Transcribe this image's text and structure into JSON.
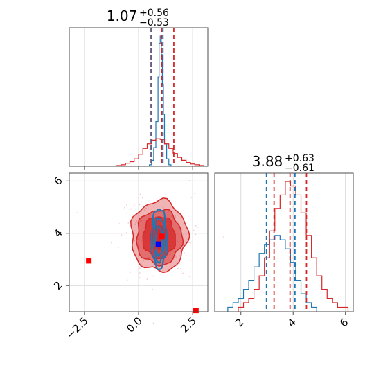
{
  "colors": {
    "red": "#d62728",
    "blue": "#1f77b4",
    "grid": "#d9d9d9",
    "axis": "#4d4d4d"
  },
  "chart_data": [
    {
      "type": "histogram",
      "panel": "param1-marginal",
      "title": "1.07",
      "title_sup": "+0.56",
      "title_sub": "−0.53",
      "xlim": [
        -3.2,
        3.2
      ],
      "quantiles_red": [
        0.54,
        1.07,
        1.63
      ],
      "quantiles_blue": [
        0.6,
        1.13
      ],
      "red_hist": {
        "edges": [
          -1.0,
          -0.8,
          -0.6,
          -0.4,
          -0.2,
          0.0,
          0.2,
          0.4,
          0.6,
          0.8,
          1.0,
          1.2,
          1.4,
          1.6,
          1.8,
          2.0,
          2.2,
          2.4,
          2.6,
          2.8,
          3.0
        ],
        "counts": [
          1,
          2,
          4,
          6,
          10,
          16,
          24,
          30,
          35,
          37,
          36,
          30,
          24,
          17,
          12,
          8,
          5,
          3,
          2,
          1
        ]
      },
      "blue_hist": {
        "edges": [
          0.5,
          0.6,
          0.7,
          0.8,
          0.9,
          0.95,
          1.0,
          1.05,
          1.1,
          1.15,
          1.2,
          1.3,
          1.4,
          1.5
        ],
        "counts": [
          2,
          8,
          25,
          60,
          120,
          165,
          175,
          150,
          110,
          70,
          30,
          10,
          2
        ]
      }
    },
    {
      "type": "histogram",
      "panel": "param2-marginal",
      "title": "3.88",
      "title_sup": "+0.63",
      "title_sub": "−0.61",
      "xlim": [
        1.0,
        6.3
      ],
      "xticks": [
        "2",
        "4",
        "6"
      ],
      "xtick_values": [
        2,
        4,
        6
      ],
      "quantiles_red": [
        3.27,
        3.88,
        4.51
      ],
      "quantiles_blue": [
        2.98,
        4.07
      ],
      "red_hist": {
        "edges": [
          1.9,
          2.1,
          2.3,
          2.5,
          2.7,
          2.9,
          3.1,
          3.3,
          3.5,
          3.7,
          3.9,
          4.1,
          4.3,
          4.5,
          4.7,
          4.9,
          5.1,
          5.3,
          5.5,
          5.7,
          5.9,
          6.1
        ],
        "counts": [
          1,
          2,
          3,
          5,
          8,
          12,
          18,
          23,
          26,
          29,
          28,
          26,
          22,
          17,
          12,
          8,
          5,
          3,
          2,
          1,
          1
        ]
      },
      "blue_hist": {
        "edges": [
          1.5,
          1.7,
          1.9,
          2.1,
          2.3,
          2.5,
          2.7,
          2.9,
          3.1,
          3.3,
          3.5,
          3.7,
          3.9,
          4.1,
          4.3,
          4.5,
          4.7,
          4.9
        ],
        "counts": [
          1,
          2,
          3,
          5,
          7,
          10,
          13,
          15,
          16,
          17,
          16,
          14,
          11,
          7,
          4,
          2,
          1
        ]
      }
    },
    {
      "type": "scatter",
      "panel": "joint-param1-param2",
      "xlim": [
        -3.2,
        3.2
      ],
      "ylim": [
        1.0,
        6.3
      ],
      "xticks": [
        "−2.5",
        "0.0",
        "2.5"
      ],
      "xtick_values": [
        -2.5,
        0.0,
        2.5
      ],
      "yticks": [
        "2",
        "4",
        "6"
      ],
      "ytick_values": [
        2,
        4,
        6
      ],
      "red_contours": [
        {
          "cx": 0.95,
          "cy": 3.9,
          "rx": 1.3,
          "ry": 1.35,
          "alpha": 0.35
        },
        {
          "cx": 0.95,
          "cy": 3.85,
          "rx": 1.05,
          "ry": 1.05,
          "alpha": 0.5
        },
        {
          "cx": 0.95,
          "cy": 3.85,
          "rx": 0.75,
          "ry": 0.8,
          "alpha": 0.75
        },
        {
          "cx": 0.95,
          "cy": 3.85,
          "rx": 0.4,
          "ry": 0.45,
          "alpha": 0.95
        }
      ],
      "blue_contours": [
        {
          "cx": 0.95,
          "cy": 3.8,
          "rx": 0.35,
          "ry": 1.15
        },
        {
          "cx": 0.95,
          "cy": 3.75,
          "rx": 0.25,
          "ry": 0.85
        },
        {
          "cx": 0.95,
          "cy": 3.7,
          "rx": 0.16,
          "ry": 0.55
        }
      ],
      "markers": [
        {
          "x": -2.3,
          "y": 2.95,
          "color": "red"
        },
        {
          "x": 2.65,
          "y": 1.05,
          "color": "red"
        },
        {
          "x": 1.07,
          "y": 3.88,
          "color": "red"
        },
        {
          "x": 0.92,
          "y": 3.58,
          "color": "blue"
        }
      ]
    }
  ]
}
